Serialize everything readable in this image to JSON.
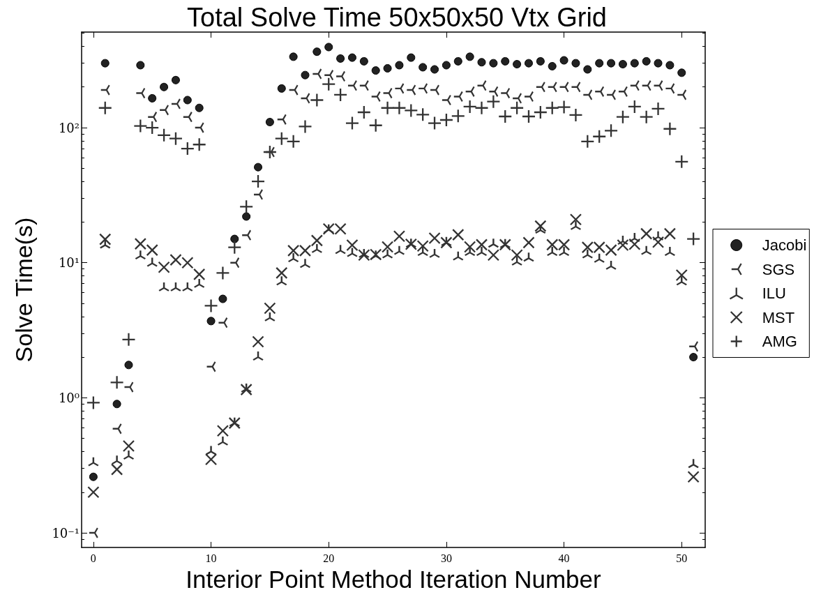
{
  "chart_data": {
    "type": "scatter",
    "title": "Total Solve Time 50x50x50 Vtx Grid",
    "xlabel": "Interior Point Method Iteration Number",
    "ylabel": "Solve Time(s)",
    "x": [
      0,
      1,
      2,
      3,
      4,
      5,
      6,
      7,
      8,
      9,
      10,
      11,
      12,
      13,
      14,
      15,
      16,
      17,
      18,
      19,
      20,
      21,
      22,
      23,
      24,
      25,
      26,
      27,
      28,
      29,
      30,
      31,
      32,
      33,
      34,
      35,
      36,
      37,
      38,
      39,
      40,
      41,
      42,
      43,
      44,
      45,
      46,
      47,
      48,
      49,
      50,
      51
    ],
    "series": [
      {
        "name": "Jacobi",
        "color": "#222222",
        "marker": "circle",
        "values": [
          0.26,
          300,
          0.9,
          1.75,
          290,
          165,
          200,
          225,
          160,
          140,
          3.7,
          5.4,
          15,
          22,
          51,
          110,
          195,
          335,
          245,
          365,
          395,
          325,
          330,
          310,
          265,
          275,
          290,
          330,
          280,
          270,
          290,
          310,
          335,
          305,
          300,
          310,
          295,
          300,
          310,
          285,
          315,
          300,
          270,
          300,
          300,
          295,
          300,
          310,
          300,
          290,
          255,
          2.0
        ]
      },
      {
        "name": "SGS",
        "color": "#333333",
        "marker": "cross",
        "values": [
          0.1,
          190,
          0.59,
          1.2,
          180,
          120,
          135,
          150,
          120,
          100,
          1.7,
          3.6,
          10,
          16,
          32,
          66,
          115,
          190,
          165,
          250,
          245,
          240,
          205,
          205,
          170,
          180,
          195,
          190,
          195,
          190,
          160,
          170,
          185,
          205,
          185,
          180,
          165,
          170,
          200,
          200,
          200,
          200,
          175,
          185,
          175,
          185,
          205,
          205,
          205,
          195,
          175,
          2.4
        ]
      },
      {
        "name": "ILU",
        "color": "#333333",
        "marker": "cross",
        "values": [
          0.33,
          13.5,
          0.34,
          0.37,
          11.2,
          9.9,
          6.5,
          6.5,
          6.5,
          6.9,
          0.4,
          0.47,
          0.65,
          1.16,
          2.0,
          3.9,
          7.2,
          10.7,
          9.7,
          12.5,
          17.5,
          12.3,
          11.7,
          11.5,
          11.2,
          11.4,
          12.1,
          13.7,
          11.9,
          11.5,
          14.1,
          11.0,
          11.9,
          11.9,
          13.7,
          13.6,
          10.1,
          10.8,
          17.4,
          11.9,
          11.9,
          18.5,
          11.4,
          10.6,
          9.4,
          14.4,
          15.1,
          12.1,
          15.5,
          11.9,
          7.2,
          0.32
        ]
      },
      {
        "name": "MST",
        "color": "#333333",
        "marker": "cross",
        "values": [
          0.2,
          14.9,
          0.295,
          0.44,
          13.8,
          12.4,
          9.25,
          10.5,
          10.0,
          8.2,
          0.35,
          0.57,
          0.65,
          1.15,
          2.6,
          4.6,
          8.4,
          12.3,
          12.3,
          14.6,
          17.8,
          17.8,
          13.5,
          11.4,
          11.5,
          13.1,
          15.7,
          13.7,
          13.3,
          15.2,
          14.1,
          16.1,
          13.1,
          13.6,
          11.4,
          13.6,
          11.4,
          14.1,
          18.7,
          13.6,
          13.6,
          20.9,
          13.0,
          13.0,
          12.4,
          13.5,
          13.7,
          16.4,
          14.2,
          16.4,
          8.1,
          0.26
        ]
      },
      {
        "name": "AMG",
        "color": "#333333",
        "marker": "cross",
        "values": [
          0.92,
          140,
          1.3,
          2.7,
          103,
          100,
          88,
          83,
          70,
          75,
          4.8,
          8.4,
          13,
          26,
          40,
          66,
          83,
          79,
          102,
          160,
          210,
          175,
          108,
          130,
          104,
          140,
          140,
          134,
          125,
          108,
          114,
          122,
          143,
          140,
          156,
          121,
          140,
          121,
          130,
          140,
          142,
          124,
          79,
          86,
          95,
          120,
          143,
          120,
          138,
          98,
          56,
          15
        ]
      }
    ],
    "xlim": [
      -1,
      52
    ],
    "xticks": [
      0,
      10,
      20,
      30,
      40,
      50
    ],
    "ylim": [
      0.078,
      510
    ],
    "yticks": [
      {
        "value": 0.09,
        "label": null
      },
      {
        "value": 0.1,
        "label": "10⁻¹"
      },
      {
        "value": 0.2,
        "label": null
      },
      {
        "value": 0.3,
        "label": null
      },
      {
        "value": 0.4,
        "label": null
      },
      {
        "value": 0.5,
        "label": null
      },
      {
        "value": 0.6,
        "label": null
      },
      {
        "value": 0.7,
        "label": null
      },
      {
        "value": 0.8,
        "label": null
      },
      {
        "value": 0.9,
        "label": null
      },
      {
        "value": 1,
        "label": "10⁰"
      },
      {
        "value": 2,
        "label": null
      },
      {
        "value": 3,
        "label": null
      },
      {
        "value": 4,
        "label": null
      },
      {
        "value": 5,
        "label": null
      },
      {
        "value": 6,
        "label": null
      },
      {
        "value": 7,
        "label": null
      },
      {
        "value": 8,
        "label": null
      },
      {
        "value": 9,
        "label": null
      },
      {
        "value": 10,
        "label": "10¹"
      },
      {
        "value": 20,
        "label": null
      },
      {
        "value": 30,
        "label": null
      },
      {
        "value": 40,
        "label": null
      },
      {
        "value": 50,
        "label": null
      },
      {
        "value": 60,
        "label": null
      },
      {
        "value": 70,
        "label": null
      },
      {
        "value": 80,
        "label": null
      },
      {
        "value": 90,
        "label": null
      },
      {
        "value": 100,
        "label": "10²"
      },
      {
        "value": 200,
        "label": null
      },
      {
        "value": 300,
        "label": null
      },
      {
        "value": 400,
        "label": null
      },
      {
        "value": 500,
        "label": null
      }
    ],
    "log": true,
    "grid": false,
    "legend": "right"
  }
}
